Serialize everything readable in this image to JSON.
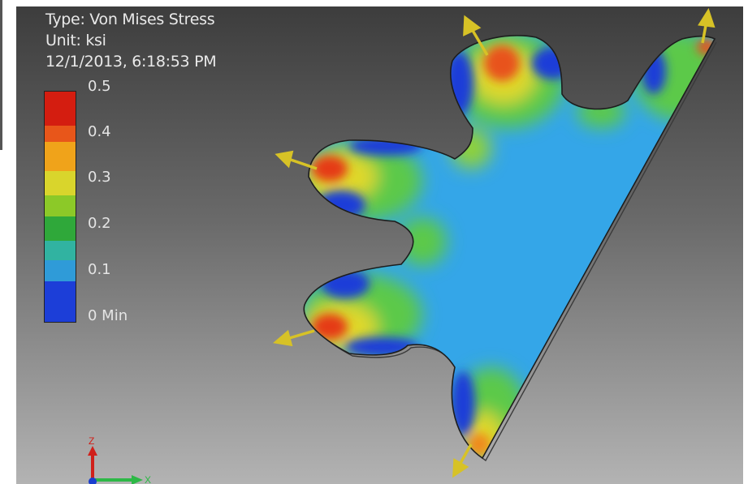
{
  "result": {
    "type_line": "Type: Von Mises Stress",
    "unit_line": "Unit: ksi",
    "timestamp": "12/1/2013, 6:18:53 PM"
  },
  "legend": {
    "ticks": [
      "0.5",
      "0.4",
      "0.3",
      "0.2",
      "0.1",
      "0 Min"
    ],
    "colors": [
      "#d41d10",
      "#f0831a",
      "#e8d82a",
      "#92cc28",
      "#34b841",
      "#34b3a6",
      "#2d8fdb",
      "#1c3ed8"
    ]
  },
  "triad": {
    "axis_x_label": "X",
    "axis_z_label": "Z"
  },
  "colors": {
    "background_top": "#3d3d3d",
    "background_bottom": "#b3b3b3",
    "part_base": "#34a6e8",
    "load_arrow": "#d7c226"
  }
}
